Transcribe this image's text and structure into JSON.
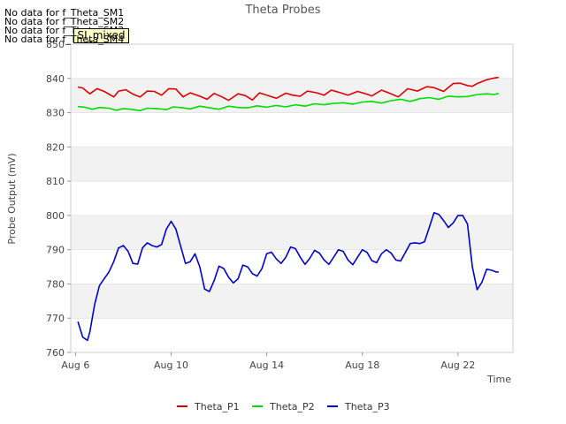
{
  "chart_data": {
    "type": "line",
    "title": "Theta Probes",
    "xlabel": "Time",
    "ylabel": "Probe Output (mV)",
    "ylim": [
      760,
      850
    ],
    "xlim": [
      5.8,
      24.3
    ],
    "yticks": [
      760,
      770,
      780,
      790,
      800,
      810,
      820,
      830,
      840,
      850
    ],
    "xticks": [
      {
        "day": 6,
        "label": "Aug 6"
      },
      {
        "day": 10,
        "label": "Aug 10"
      },
      {
        "day": 14,
        "label": "Aug 14"
      },
      {
        "day": 18,
        "label": "Aug 18"
      },
      {
        "day": 22,
        "label": "Aug 22"
      }
    ],
    "grid": "horizontal bands",
    "legend_position": "bottom",
    "series": [
      {
        "name": "Theta_P1",
        "color": "#dd0000",
        "x": [
          6.1,
          6.3,
          6.6,
          6.9,
          7.2,
          7.6,
          7.8,
          8.1,
          8.4,
          8.7,
          9.0,
          9.3,
          9.6,
          9.9,
          10.2,
          10.5,
          10.8,
          11.2,
          11.5,
          11.8,
          12.1,
          12.4,
          12.8,
          13.1,
          13.4,
          13.7,
          14.1,
          14.4,
          14.8,
          15.1,
          15.4,
          15.7,
          16.1,
          16.4,
          16.7,
          17.1,
          17.4,
          17.8,
          18.1,
          18.4,
          18.8,
          19.1,
          19.5,
          19.9,
          20.3,
          20.7,
          21.0,
          21.4,
          21.8,
          22.1,
          22.4,
          22.6,
          22.8,
          23.2,
          23.5,
          23.7
        ],
        "values": [
          837.5,
          837.2,
          835.5,
          837.0,
          836.2,
          834.6,
          836.3,
          836.7,
          835.4,
          834.6,
          836.3,
          836.2,
          835.1,
          837.0,
          836.9,
          834.6,
          835.8,
          834.8,
          833.9,
          835.6,
          834.7,
          833.6,
          835.5,
          835.0,
          833.7,
          835.8,
          834.9,
          834.2,
          835.7,
          835.1,
          834.8,
          836.3,
          835.8,
          835.1,
          836.6,
          835.8,
          835.1,
          836.2,
          835.6,
          834.9,
          836.6,
          835.8,
          834.6,
          837.0,
          836.3,
          837.6,
          837.3,
          836.2,
          838.5,
          838.6,
          837.9,
          837.7,
          838.5,
          839.6,
          840.1,
          840.3
        ]
      },
      {
        "name": "Theta_P2",
        "color": "#00dd00",
        "x": [
          6.1,
          6.4,
          6.7,
          7.0,
          7.4,
          7.7,
          8.0,
          8.3,
          8.7,
          9.0,
          9.4,
          9.8,
          10.1,
          10.5,
          10.8,
          11.2,
          11.6,
          12.0,
          12.4,
          12.8,
          13.2,
          13.6,
          14.0,
          14.4,
          14.8,
          15.2,
          15.6,
          16.0,
          16.4,
          16.8,
          17.2,
          17.6,
          18.0,
          18.4,
          18.8,
          19.2,
          19.6,
          20.0,
          20.4,
          20.8,
          21.2,
          21.6,
          22.0,
          22.4,
          22.8,
          23.2,
          23.5,
          23.7
        ],
        "values": [
          831.8,
          831.6,
          831.0,
          831.5,
          831.3,
          830.7,
          831.2,
          831.0,
          830.6,
          831.3,
          831.2,
          830.9,
          831.7,
          831.4,
          831.1,
          831.9,
          831.4,
          831.0,
          831.9,
          831.5,
          831.4,
          832.0,
          831.6,
          832.1,
          831.7,
          832.3,
          831.9,
          832.6,
          832.3,
          832.7,
          832.9,
          832.5,
          833.1,
          833.3,
          832.8,
          833.5,
          833.9,
          833.3,
          834.1,
          834.4,
          833.9,
          834.8,
          834.6,
          834.7,
          835.3,
          835.5,
          835.3,
          835.6
        ]
      },
      {
        "name": "Theta_P3",
        "color": "#0000cc",
        "x": [
          6.1,
          6.3,
          6.5,
          6.6,
          6.8,
          7.0,
          7.2,
          7.4,
          7.6,
          7.8,
          8.0,
          8.2,
          8.4,
          8.6,
          8.8,
          9.0,
          9.2,
          9.4,
          9.6,
          9.8,
          10.0,
          10.2,
          10.4,
          10.6,
          10.8,
          11.0,
          11.2,
          11.4,
          11.6,
          11.8,
          12.0,
          12.2,
          12.4,
          12.6,
          12.8,
          13.0,
          13.2,
          13.4,
          13.6,
          13.8,
          14.0,
          14.2,
          14.4,
          14.6,
          14.8,
          15.0,
          15.2,
          15.4,
          15.6,
          15.8,
          16.0,
          16.2,
          16.4,
          16.6,
          16.8,
          17.0,
          17.2,
          17.4,
          17.6,
          17.8,
          18.0,
          18.2,
          18.4,
          18.6,
          18.8,
          19.0,
          19.2,
          19.4,
          19.6,
          19.8,
          20.0,
          20.2,
          20.4,
          20.6,
          20.8,
          21.0,
          21.2,
          21.4,
          21.6,
          21.8,
          22.0,
          22.2,
          22.4,
          22.6,
          22.8,
          23.0,
          23.2,
          23.4,
          23.6,
          23.7
        ],
        "values": [
          769.0,
          764.5,
          763.5,
          766.0,
          774.0,
          779.5,
          781.5,
          783.5,
          786.5,
          790.5,
          791.2,
          789.5,
          786.0,
          785.8,
          790.5,
          792.0,
          791.2,
          790.8,
          791.5,
          796.0,
          798.3,
          796.0,
          791.0,
          786.0,
          786.5,
          788.8,
          785.0,
          778.5,
          777.8,
          781.0,
          785.2,
          784.5,
          782.0,
          780.3,
          781.5,
          785.5,
          785.0,
          783.0,
          782.3,
          784.5,
          788.8,
          789.3,
          787.3,
          786.0,
          787.8,
          790.8,
          790.3,
          787.8,
          785.7,
          787.5,
          789.8,
          789.0,
          787.0,
          785.7,
          787.8,
          790.0,
          789.5,
          787.0,
          785.6,
          787.8,
          790.0,
          789.2,
          786.8,
          786.2,
          788.8,
          790.0,
          789.0,
          787.0,
          786.7,
          789.2,
          791.8,
          792.0,
          791.8,
          792.3,
          796.5,
          800.8,
          800.3,
          798.5,
          796.5,
          797.8,
          800.0,
          800.0,
          797.5,
          785.0,
          778.3,
          780.5,
          784.3,
          784.0,
          783.5,
          783.5
        ]
      }
    ]
  },
  "legend": {
    "items": [
      "Theta_P1",
      "Theta_P2",
      "Theta_P3"
    ]
  },
  "nodata_messages": [
    "No data for f_Theta_SM1",
    "No data for f_Theta_SM2",
    "No data for f_Theta_SM3",
    "No data for f_Theta_SM4"
  ],
  "stamp": {
    "label": "SI_mixed"
  }
}
